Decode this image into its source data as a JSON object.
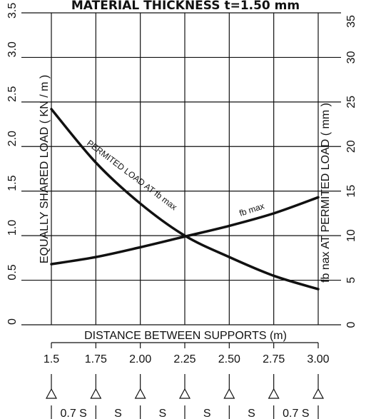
{
  "chart_data": {
    "type": "line",
    "title": "MATERIAL THICKNESS t=1.50 mm",
    "x_axis": {
      "label": "DISTANCE BETWEEN SUPPORTS (m)",
      "unit": "m",
      "range": [
        1.5,
        3.0
      ],
      "tick_values": [
        1.5,
        1.75,
        2.0,
        2.25,
        2.5,
        2.75,
        3.0
      ],
      "tick_labels": [
        "1.5",
        "1.75",
        "2.00",
        "2.25",
        "2.50",
        "2.75",
        "3.00"
      ]
    },
    "y_left_axis": {
      "label": "EQUALLY SHARED LOAD ( KN / m )",
      "range": [
        0,
        3.5
      ],
      "tick_values": [
        0,
        0.5,
        1.0,
        1.5,
        2.0,
        2.5,
        3.0,
        3.5
      ],
      "tick_labels": [
        "0",
        "0.5",
        "1.0",
        "1.5",
        "2.0",
        "2.5",
        "3.0",
        "3.5"
      ]
    },
    "y_right_axis": {
      "label": "fb nax AT PERMITED LOAD ( mm )",
      "range": [
        0,
        35
      ],
      "tick_values": [
        0,
        5,
        10,
        15,
        20,
        25,
        30,
        35
      ],
      "tick_labels": [
        "0",
        "5",
        "10",
        "15",
        "20",
        "25",
        "30",
        "35"
      ]
    },
    "grid": true,
    "series": [
      {
        "name": "PERMITED LOAD AT fb max",
        "axis": "left",
        "x": [
          1.5,
          1.75,
          2.0,
          2.25,
          2.5,
          2.75,
          3.0
        ],
        "y": [
          2.42,
          1.82,
          1.36,
          1.0,
          0.76,
          0.55,
          0.4
        ]
      },
      {
        "name": "fb max",
        "axis": "right",
        "x": [
          1.5,
          1.75,
          2.0,
          2.25,
          2.5,
          2.75,
          3.0
        ],
        "y": [
          6.8,
          7.6,
          8.7,
          9.9,
          11.1,
          12.5,
          14.3
        ]
      }
    ],
    "support_diagram": {
      "supports": 7,
      "spans": [
        "0.7 S",
        "S",
        "S",
        "S",
        "S",
        "0.7 S"
      ]
    }
  }
}
